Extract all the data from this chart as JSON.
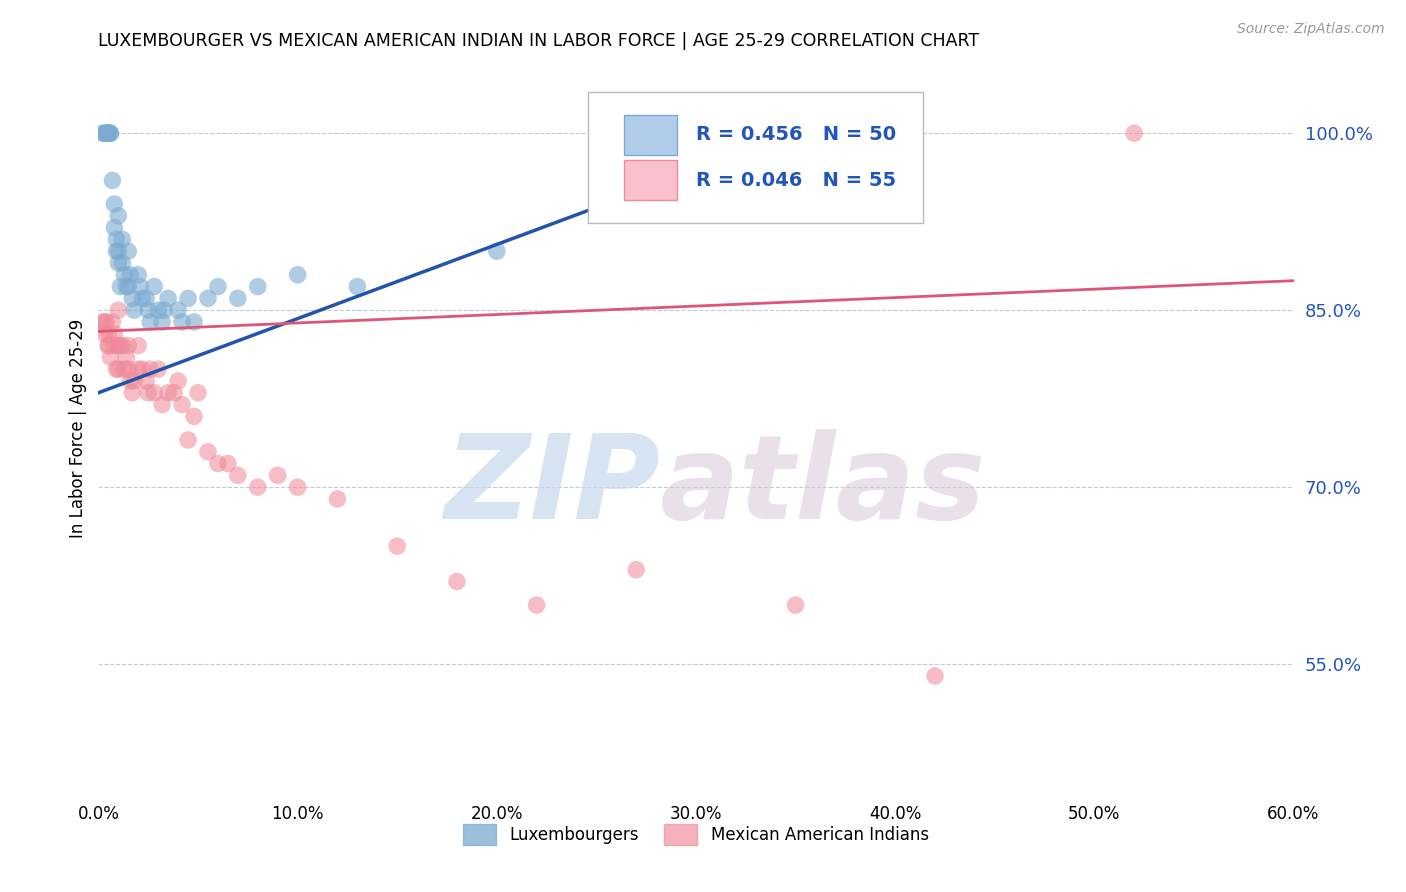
{
  "title": "LUXEMBOURGER VS MEXICAN AMERICAN INDIAN IN LABOR FORCE | AGE 25-29 CORRELATION CHART",
  "source": "Source: ZipAtlas.com",
  "ylabel": "In Labor Force | Age 25-29",
  "xlim": [
    0.0,
    0.6
  ],
  "ylim": [
    0.44,
    1.06
  ],
  "ytick_labels": [
    "55.0%",
    "70.0%",
    "85.0%",
    "100.0%"
  ],
  "ytick_values": [
    0.55,
    0.7,
    0.85,
    1.0
  ],
  "xtick_labels": [
    "0.0%",
    "10.0%",
    "20.0%",
    "30.0%",
    "40.0%",
    "50.0%",
    "60.0%"
  ],
  "xtick_values": [
    0.0,
    0.1,
    0.2,
    0.3,
    0.4,
    0.5,
    0.6
  ],
  "blue_R": 0.456,
  "blue_N": 50,
  "pink_R": 0.046,
  "pink_N": 55,
  "blue_color": "#7AAAD0",
  "pink_color": "#F08898",
  "blue_line_color": "#2255AA",
  "pink_line_color": "#E05575",
  "legend_label_blue": "Luxembourgers",
  "legend_label_pink": "Mexican American Indians",
  "watermark_zip": "ZIP",
  "watermark_atlas": "atlas",
  "blue_x": [
    0.002,
    0.003,
    0.004,
    0.004,
    0.005,
    0.005,
    0.005,
    0.006,
    0.006,
    0.007,
    0.008,
    0.008,
    0.009,
    0.009,
    0.01,
    0.01,
    0.01,
    0.011,
    0.012,
    0.012,
    0.013,
    0.014,
    0.015,
    0.015,
    0.016,
    0.017,
    0.018,
    0.02,
    0.021,
    0.022,
    0.024,
    0.025,
    0.026,
    0.028,
    0.03,
    0.032,
    0.033,
    0.035,
    0.04,
    0.042,
    0.045,
    0.048,
    0.055,
    0.06,
    0.07,
    0.08,
    0.1,
    0.13,
    0.2,
    0.35
  ],
  "blue_y": [
    1.0,
    1.0,
    1.0,
    1.0,
    1.0,
    1.0,
    1.0,
    1.0,
    1.0,
    0.96,
    0.94,
    0.92,
    0.91,
    0.9,
    0.93,
    0.9,
    0.89,
    0.87,
    0.91,
    0.89,
    0.88,
    0.87,
    0.9,
    0.87,
    0.88,
    0.86,
    0.85,
    0.88,
    0.87,
    0.86,
    0.86,
    0.85,
    0.84,
    0.87,
    0.85,
    0.84,
    0.85,
    0.86,
    0.85,
    0.84,
    0.86,
    0.84,
    0.86,
    0.87,
    0.86,
    0.87,
    0.88,
    0.87,
    0.9,
    1.0
  ],
  "pink_x": [
    0.002,
    0.003,
    0.003,
    0.004,
    0.005,
    0.005,
    0.005,
    0.006,
    0.007,
    0.008,
    0.008,
    0.009,
    0.01,
    0.01,
    0.01,
    0.011,
    0.012,
    0.013,
    0.014,
    0.015,
    0.015,
    0.016,
    0.017,
    0.018,
    0.02,
    0.02,
    0.022,
    0.024,
    0.025,
    0.026,
    0.028,
    0.03,
    0.032,
    0.035,
    0.038,
    0.04,
    0.042,
    0.045,
    0.048,
    0.05,
    0.055,
    0.06,
    0.065,
    0.07,
    0.08,
    0.09,
    0.1,
    0.12,
    0.15,
    0.18,
    0.22,
    0.27,
    0.35,
    0.42,
    0.52
  ],
  "pink_y": [
    0.84,
    0.84,
    0.83,
    0.84,
    0.83,
    0.82,
    0.82,
    0.81,
    0.84,
    0.83,
    0.82,
    0.8,
    0.85,
    0.82,
    0.8,
    0.82,
    0.82,
    0.8,
    0.81,
    0.82,
    0.8,
    0.79,
    0.78,
    0.79,
    0.82,
    0.8,
    0.8,
    0.79,
    0.78,
    0.8,
    0.78,
    0.8,
    0.77,
    0.78,
    0.78,
    0.79,
    0.77,
    0.74,
    0.76,
    0.78,
    0.73,
    0.72,
    0.72,
    0.71,
    0.7,
    0.71,
    0.7,
    0.69,
    0.65,
    0.62,
    0.6,
    0.63,
    0.6,
    0.54,
    1.0
  ],
  "blue_line_x0": 0.0,
  "blue_line_y0": 0.78,
  "blue_line_x1": 0.35,
  "blue_line_y1": 1.0,
  "pink_line_x0": 0.0,
  "pink_line_y0": 0.832,
  "pink_line_x1": 0.6,
  "pink_line_y1": 0.875
}
